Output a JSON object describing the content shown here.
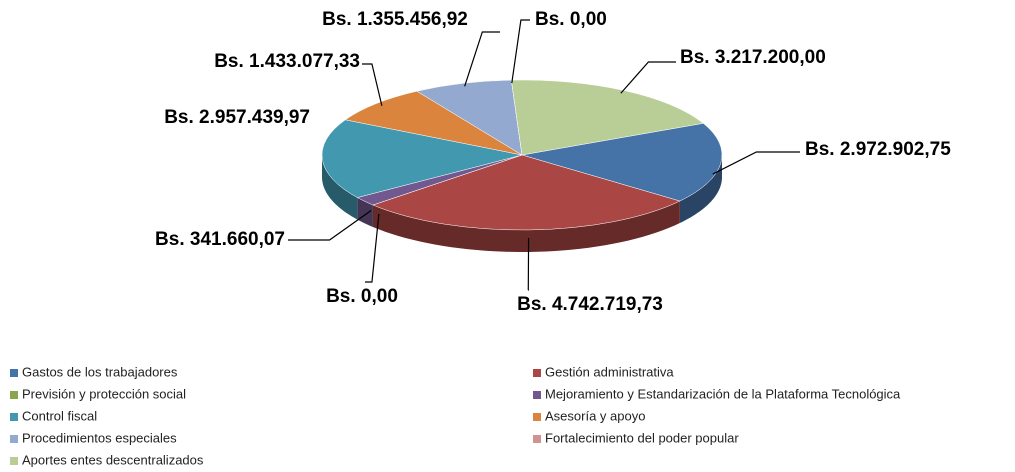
{
  "chart_data": {
    "type": "pie",
    "categories": [
      "Gastos de los trabajadores",
      "Gestión administrativa",
      "Previsión y protección social",
      "Mejoramiento y Estandarización de la Plataforma Tecnológica",
      "Control fiscal",
      "Asesoría y apoyo",
      "Procedimientos especiales",
      "Fortalecimiento del poder popular",
      "Aportes entes descentralizados"
    ],
    "values": [
      2972902.75,
      4742719.73,
      0,
      341660.07,
      2957439.97,
      1433077.33,
      1355456.92,
      0,
      3217200.0
    ],
    "value_labels": [
      "Bs. 2.972.902,75",
      "Bs. 4.742.719,73",
      "Bs. 0,00",
      "Bs. 341.660,07",
      "Bs. 2.957.439,97",
      "Bs. 1.433.077,33",
      "Bs. 1.355.456,92",
      "Bs. 0,00",
      "Bs. 3.217.200,00"
    ],
    "colors": [
      "#4572a7",
      "#aa4643",
      "#89a54e",
      "#71588f",
      "#4198af",
      "#db843d",
      "#93a9cf",
      "#d19392",
      "#b9cd96"
    ],
    "legend": "bottom"
  }
}
